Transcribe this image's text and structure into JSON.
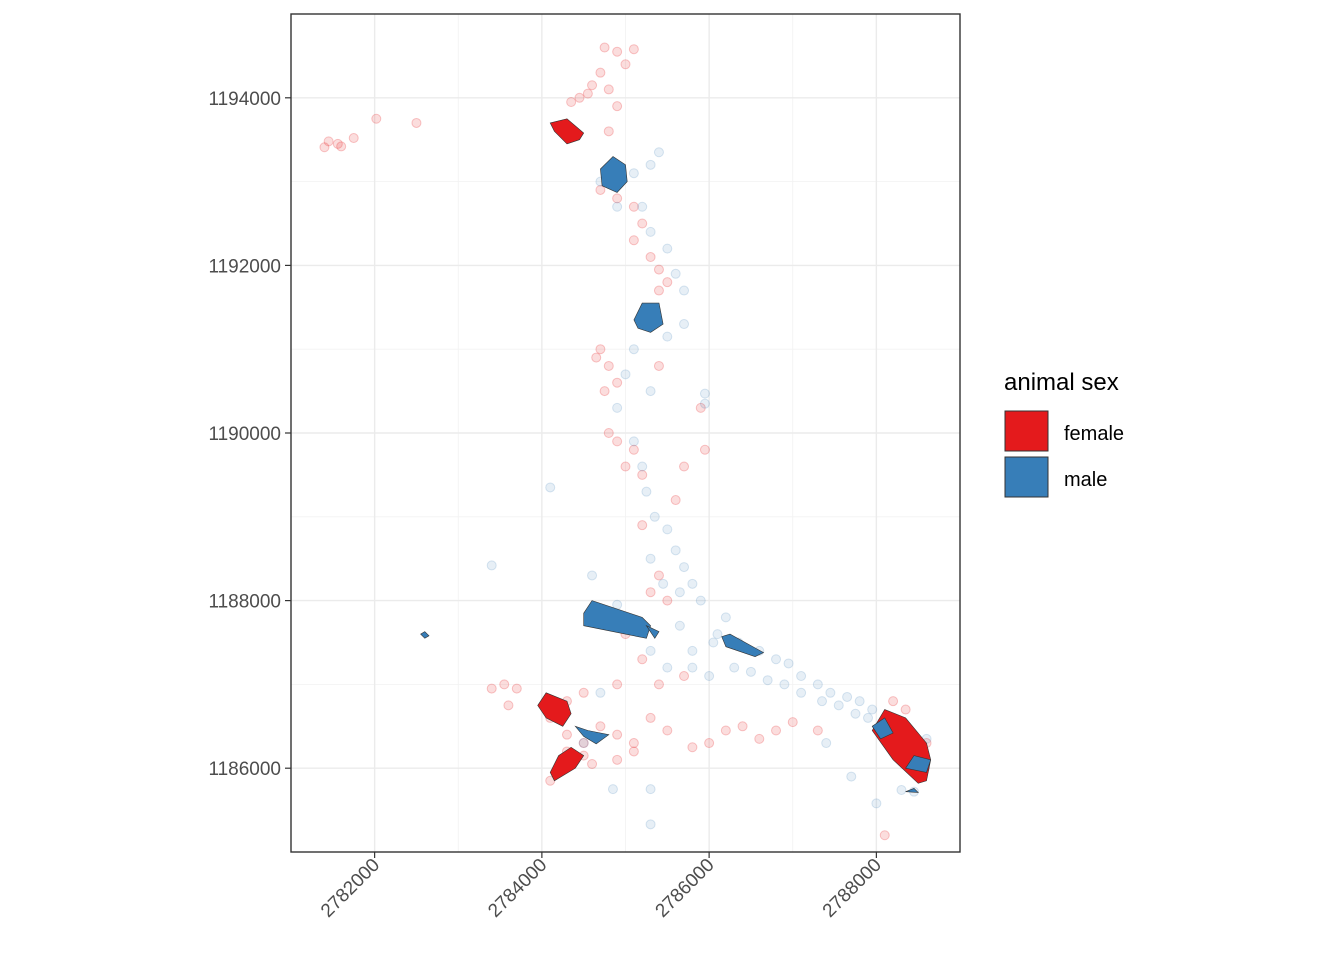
{
  "chart_data": {
    "type": "scatter",
    "title": "",
    "xlabel": "",
    "ylabel": "",
    "xlim": [
      2781000,
      2789000
    ],
    "ylim": [
      1185000,
      1195000
    ],
    "x_ticks": [
      2782000,
      2784000,
      2786000,
      2788000
    ],
    "x_tick_labels": [
      "2782000",
      "2784000",
      "2786000",
      "2788000"
    ],
    "y_ticks": [
      1186000,
      1188000,
      1190000,
      1192000,
      1194000
    ],
    "y_tick_labels": [
      "1186000",
      "1188000",
      "1190000",
      "1192000",
      "1194000"
    ],
    "grid": true,
    "legend": {
      "title": "animal sex",
      "position": "right",
      "entries": [
        {
          "label": "female",
          "color": "#E41A1C"
        },
        {
          "label": "male",
          "color": "#377EB8"
        }
      ]
    },
    "series": [
      {
        "name": "female",
        "color": "#E41A1C",
        "point_opacity": 0.15,
        "points": [
          [
            2781600,
            1193420
          ],
          [
            2781560,
            1193450
          ],
          [
            2781750,
            1193520
          ],
          [
            2781400,
            1193410
          ],
          [
            2781450,
            1193480
          ],
          [
            2782020,
            1193750
          ],
          [
            2782500,
            1193700
          ],
          [
            2784750,
            1194600
          ],
          [
            2784900,
            1194550
          ],
          [
            2785100,
            1194580
          ],
          [
            2785000,
            1194400
          ],
          [
            2784700,
            1194300
          ],
          [
            2784600,
            1194150
          ],
          [
            2784450,
            1194000
          ],
          [
            2784350,
            1193950
          ],
          [
            2784550,
            1194050
          ],
          [
            2784800,
            1194100
          ],
          [
            2784900,
            1193900
          ],
          [
            2784800,
            1193600
          ],
          [
            2784700,
            1192900
          ],
          [
            2784900,
            1192800
          ],
          [
            2785100,
            1192700
          ],
          [
            2785200,
            1192500
          ],
          [
            2785100,
            1192300
          ],
          [
            2785300,
            1192100
          ],
          [
            2785400,
            1191950
          ],
          [
            2785500,
            1191800
          ],
          [
            2785400,
            1191700
          ],
          [
            2784700,
            1191000
          ],
          [
            2784650,
            1190900
          ],
          [
            2784800,
            1190800
          ],
          [
            2784900,
            1190600
          ],
          [
            2784750,
            1190500
          ],
          [
            2784800,
            1190000
          ],
          [
            2784900,
            1189900
          ],
          [
            2785100,
            1189800
          ],
          [
            2785200,
            1189500
          ],
          [
            2785000,
            1189600
          ],
          [
            2785700,
            1189600
          ],
          [
            2785400,
            1190800
          ],
          [
            2785900,
            1190300
          ],
          [
            2785950,
            1189800
          ],
          [
            2785600,
            1189200
          ],
          [
            2785200,
            1188900
          ],
          [
            2785400,
            1188300
          ],
          [
            2785500,
            1188000
          ],
          [
            2785300,
            1188100
          ],
          [
            2785100,
            1187700
          ],
          [
            2785000,
            1187600
          ],
          [
            2785200,
            1187300
          ],
          [
            2785400,
            1187000
          ],
          [
            2785700,
            1187100
          ],
          [
            2784900,
            1187000
          ],
          [
            2784500,
            1186900
          ],
          [
            2784300,
            1186800
          ],
          [
            2783550,
            1187000
          ],
          [
            2783400,
            1186950
          ],
          [
            2783600,
            1186750
          ],
          [
            2783700,
            1186950
          ],
          [
            2784100,
            1186600
          ],
          [
            2784300,
            1186400
          ],
          [
            2784500,
            1186300
          ],
          [
            2784700,
            1186500
          ],
          [
            2784900,
            1186400
          ],
          [
            2785100,
            1186300
          ],
          [
            2785300,
            1186600
          ],
          [
            2785500,
            1186450
          ],
          [
            2785800,
            1186250
          ],
          [
            2786000,
            1186300
          ],
          [
            2786200,
            1186450
          ],
          [
            2786400,
            1186500
          ],
          [
            2786600,
            1186350
          ],
          [
            2786800,
            1186450
          ],
          [
            2787000,
            1186550
          ],
          [
            2787300,
            1186450
          ],
          [
            2784900,
            1186100
          ],
          [
            2785100,
            1186200
          ],
          [
            2784600,
            1186050
          ],
          [
            2784100,
            1185850
          ],
          [
            2784300,
            1186200
          ],
          [
            2788100,
            1185200
          ],
          [
            2788200,
            1186800
          ],
          [
            2788350,
            1186700
          ],
          [
            2788600,
            1186300
          ],
          [
            2784500,
            1186150
          ]
        ]
      },
      {
        "name": "male",
        "color": "#377EB8",
        "point_opacity": 0.12,
        "points": [
          [
            2784700,
            1193000
          ],
          [
            2785100,
            1193100
          ],
          [
            2785300,
            1193200
          ],
          [
            2785400,
            1193350
          ],
          [
            2784900,
            1192700
          ],
          [
            2785200,
            1192700
          ],
          [
            2785300,
            1192400
          ],
          [
            2785500,
            1192200
          ],
          [
            2785600,
            1191900
          ],
          [
            2785700,
            1191700
          ],
          [
            2785700,
            1191300
          ],
          [
            2785500,
            1191150
          ],
          [
            2785100,
            1191000
          ],
          [
            2785000,
            1190700
          ],
          [
            2784900,
            1190300
          ],
          [
            2785300,
            1190500
          ],
          [
            2785100,
            1189900
          ],
          [
            2785200,
            1189600
          ],
          [
            2785250,
            1189300
          ],
          [
            2785350,
            1189000
          ],
          [
            2785500,
            1188850
          ],
          [
            2785600,
            1188600
          ],
          [
            2785300,
            1188500
          ],
          [
            2785700,
            1188400
          ],
          [
            2785800,
            1188200
          ],
          [
            2785450,
            1188200
          ],
          [
            2785650,
            1188100
          ],
          [
            2785900,
            1188000
          ],
          [
            2786200,
            1187800
          ],
          [
            2786100,
            1187600
          ],
          [
            2786350,
            1187500
          ],
          [
            2786600,
            1187400
          ],
          [
            2786800,
            1187300
          ],
          [
            2786950,
            1187250
          ],
          [
            2787100,
            1187100
          ],
          [
            2787300,
            1187000
          ],
          [
            2787450,
            1186900
          ],
          [
            2787650,
            1186850
          ],
          [
            2787800,
            1186800
          ],
          [
            2787950,
            1186700
          ],
          [
            2786300,
            1187200
          ],
          [
            2786500,
            1187150
          ],
          [
            2786700,
            1187050
          ],
          [
            2786900,
            1187000
          ],
          [
            2787100,
            1186900
          ],
          [
            2787350,
            1186800
          ],
          [
            2787550,
            1186750
          ],
          [
            2787750,
            1186650
          ],
          [
            2785800,
            1187200
          ],
          [
            2786000,
            1187100
          ],
          [
            2785500,
            1187200
          ],
          [
            2785300,
            1187400
          ],
          [
            2785800,
            1187400
          ],
          [
            2784600,
            1188300
          ],
          [
            2784900,
            1187950
          ],
          [
            2785950,
            1190470
          ],
          [
            2785950,
            1190350
          ],
          [
            2783400,
            1188420
          ],
          [
            2784100,
            1189350
          ],
          [
            2784700,
            1186900
          ],
          [
            2784500,
            1186300
          ],
          [
            2784850,
            1185750
          ],
          [
            2785300,
            1185750
          ],
          [
            2785300,
            1185330
          ],
          [
            2788000,
            1185580
          ],
          [
            2788600,
            1186350
          ],
          [
            2788580,
            1186000
          ],
          [
            2788450,
            1185720
          ],
          [
            2788300,
            1185740
          ],
          [
            2787700,
            1185900
          ],
          [
            2787400,
            1186300
          ],
          [
            2787900,
            1186600
          ],
          [
            2786050,
            1187500
          ],
          [
            2785650,
            1187700
          ]
        ]
      }
    ],
    "polygons": [
      {
        "series": "female",
        "points": [
          [
            2784100,
            1193700
          ],
          [
            2784300,
            1193750
          ],
          [
            2784500,
            1193580
          ],
          [
            2784450,
            1193500
          ],
          [
            2784300,
            1193450
          ],
          [
            2784150,
            1193600
          ]
        ]
      },
      {
        "series": "male",
        "points": [
          [
            2784700,
            1193150
          ],
          [
            2784850,
            1193300
          ],
          [
            2785000,
            1193200
          ],
          [
            2785020,
            1193000
          ],
          [
            2784900,
            1192870
          ],
          [
            2784720,
            1192950
          ]
        ]
      },
      {
        "series": "male",
        "points": [
          [
            2785100,
            1191350
          ],
          [
            2785200,
            1191550
          ],
          [
            2785400,
            1191550
          ],
          [
            2785450,
            1191300
          ],
          [
            2785300,
            1191200
          ],
          [
            2785150,
            1191250
          ]
        ]
      },
      {
        "series": "male",
        "points": [
          [
            2784500,
            1187850
          ],
          [
            2784600,
            1188000
          ],
          [
            2785200,
            1187800
          ],
          [
            2785300,
            1187700
          ],
          [
            2785250,
            1187550
          ],
          [
            2784500,
            1187700
          ]
        ]
      },
      {
        "series": "male",
        "points": [
          [
            2785250,
            1187700
          ],
          [
            2785400,
            1187630
          ],
          [
            2785350,
            1187550
          ]
        ]
      },
      {
        "series": "male",
        "points": [
          [
            2786150,
            1187570
          ],
          [
            2786250,
            1187600
          ],
          [
            2786650,
            1187380
          ],
          [
            2786550,
            1187330
          ],
          [
            2786200,
            1187450
          ]
        ]
      },
      {
        "series": "female",
        "points": [
          [
            2783950,
            1186750
          ],
          [
            2784050,
            1186900
          ],
          [
            2784300,
            1186800
          ],
          [
            2784350,
            1186650
          ],
          [
            2784250,
            1186500
          ],
          [
            2784050,
            1186600
          ]
        ]
      },
      {
        "series": "male",
        "points": [
          [
            2784400,
            1186500
          ],
          [
            2784550,
            1186450
          ],
          [
            2784800,
            1186400
          ],
          [
            2784650,
            1186290
          ],
          [
            2784500,
            1186380
          ]
        ]
      },
      {
        "series": "female",
        "points": [
          [
            2784100,
            1185950
          ],
          [
            2784200,
            1186150
          ],
          [
            2784350,
            1186250
          ],
          [
            2784500,
            1186150
          ],
          [
            2784400,
            1186000
          ],
          [
            2784150,
            1185850
          ]
        ]
      },
      {
        "series": "female",
        "points": [
          [
            2787950,
            1186450
          ],
          [
            2788100,
            1186700
          ],
          [
            2788350,
            1186600
          ],
          [
            2788600,
            1186300
          ],
          [
            2788650,
            1186100
          ],
          [
            2788600,
            1185850
          ],
          [
            2788500,
            1185820
          ],
          [
            2788200,
            1186100
          ]
        ]
      },
      {
        "series": "male",
        "points": [
          [
            2787950,
            1186500
          ],
          [
            2788100,
            1186600
          ],
          [
            2788200,
            1186420
          ],
          [
            2788050,
            1186350
          ]
        ]
      },
      {
        "series": "male",
        "points": [
          [
            2788350,
            1186000
          ],
          [
            2788450,
            1186150
          ],
          [
            2788650,
            1186100
          ],
          [
            2788600,
            1185950
          ]
        ]
      },
      {
        "series": "male",
        "points": [
          [
            2782550,
            1187600
          ],
          [
            2782600,
            1187630
          ],
          [
            2782650,
            1187580
          ],
          [
            2782600,
            1187550
          ]
        ]
      },
      {
        "series": "male",
        "points": [
          [
            2788350,
            1185720
          ],
          [
            2788450,
            1185760
          ],
          [
            2788500,
            1185710
          ]
        ]
      }
    ]
  }
}
